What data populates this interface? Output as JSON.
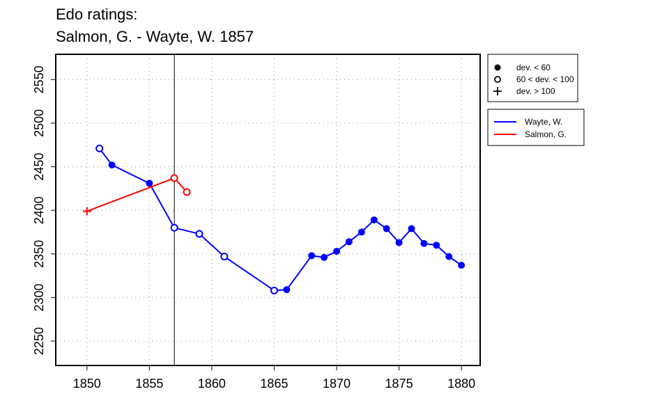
{
  "chart_data": {
    "type": "line",
    "title": "Edo ratings:",
    "subtitle": "Salmon, G. - Wayte, W. 1857",
    "xlim": [
      1847.5,
      1881.5
    ],
    "ylim": [
      2222,
      2579
    ],
    "x_ticks": [
      1850,
      1855,
      1860,
      1865,
      1870,
      1875,
      1880
    ],
    "y_ticks": [
      2250,
      2300,
      2350,
      2400,
      2450,
      2500,
      2550
    ],
    "grid": true,
    "vertical_marker": 1857,
    "series": [
      {
        "name": "Wayte, W.",
        "color": "#0000ff",
        "points": [
          {
            "x": 1851,
            "y": 2471,
            "dev": "mid"
          },
          {
            "x": 1852,
            "y": 2452,
            "dev": "low"
          },
          {
            "x": 1855,
            "y": 2431,
            "dev": "low"
          },
          {
            "x": 1857,
            "y": 2380,
            "dev": "mid"
          },
          {
            "x": 1859,
            "y": 2373,
            "dev": "mid"
          },
          {
            "x": 1861,
            "y": 2347,
            "dev": "mid"
          },
          {
            "x": 1865,
            "y": 2308,
            "dev": "mid"
          },
          {
            "x": 1866,
            "y": 2309,
            "dev": "low"
          },
          {
            "x": 1868,
            "y": 2348,
            "dev": "low"
          },
          {
            "x": 1869,
            "y": 2346,
            "dev": "low"
          },
          {
            "x": 1870,
            "y": 2353,
            "dev": "low"
          },
          {
            "x": 1871,
            "y": 2364,
            "dev": "low"
          },
          {
            "x": 1872,
            "y": 2375,
            "dev": "low"
          },
          {
            "x": 1873,
            "y": 2389,
            "dev": "low"
          },
          {
            "x": 1874,
            "y": 2379,
            "dev": "low"
          },
          {
            "x": 1875,
            "y": 2363,
            "dev": "low"
          },
          {
            "x": 1876,
            "y": 2379,
            "dev": "low"
          },
          {
            "x": 1877,
            "y": 2362,
            "dev": "low"
          },
          {
            "x": 1878,
            "y": 2360,
            "dev": "low"
          },
          {
            "x": 1879,
            "y": 2347,
            "dev": "low"
          },
          {
            "x": 1880,
            "y": 2337,
            "dev": "low"
          }
        ]
      },
      {
        "name": "Salmon, G.",
        "color": "#ff0000",
        "points": [
          {
            "x": 1850,
            "y": 2399,
            "dev": "high"
          },
          {
            "x": 1857,
            "y": 2437,
            "dev": "mid"
          },
          {
            "x": 1858,
            "y": 2421,
            "dev": "mid"
          }
        ]
      }
    ],
    "legend_symbols": [
      {
        "symbol": "filled",
        "label": "dev. < 60"
      },
      {
        "symbol": "open",
        "label": "60 < dev. < 100"
      },
      {
        "symbol": "plus",
        "label": "dev. > 100"
      }
    ],
    "legend_placement": "right"
  }
}
